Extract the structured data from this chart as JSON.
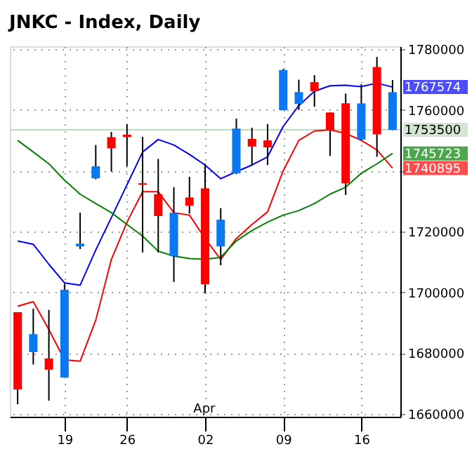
{
  "chart_data": {
    "type": "candlestick",
    "title": "JNKC - Index, Daily",
    "categories": [
      null,
      null,
      null,
      "19",
      null,
      null,
      null,
      "26",
      null,
      null,
      null,
      null,
      "02",
      null,
      null,
      null,
      null,
      "09",
      null,
      null,
      null,
      null,
      "16",
      null,
      null
    ],
    "ohlc": [
      [
        1668000,
        1693400,
        1663100,
        1693400
      ],
      [
        1686200,
        1694600,
        1676200,
        1680300
      ],
      [
        1674500,
        1694200,
        1664300,
        1678200
      ],
      [
        1700800,
        1702800,
        1671900,
        1671900
      ],
      [
        1716000,
        1726200,
        1714200,
        1715100
      ],
      [
        1741500,
        1748500,
        1737200,
        1737500
      ],
      [
        1747400,
        1752800,
        1739700,
        1751100
      ],
      [
        1751100,
        1755400,
        1741500,
        1751900
      ],
      [
        1735400,
        1751200,
        1713100,
        1735900
      ],
      [
        1725100,
        1743900,
        1713100,
        1732300
      ],
      [
        1726200,
        1734600,
        1703400,
        1711900
      ],
      [
        1728500,
        1738000,
        1725900,
        1731200
      ],
      [
        1702600,
        1742300,
        1699700,
        1734200
      ],
      [
        1723900,
        1727700,
        1708900,
        1715100
      ],
      [
        1753900,
        1757200,
        1738900,
        1739200
      ],
      [
        1748000,
        1754200,
        1741900,
        1750500
      ],
      [
        1747700,
        1755400,
        1741900,
        1750000
      ],
      [
        1773200,
        1773500,
        1760000,
        1760000
      ],
      [
        1765900,
        1770000,
        1760000,
        1762000
      ],
      [
        1766200,
        1771500,
        1761100,
        1769200
      ],
      [
        1753400,
        1759200,
        1744900,
        1759200
      ],
      [
        1735900,
        1765400,
        1732000,
        1762200
      ],
      [
        1762200,
        1768500,
        1750000,
        1750300
      ],
      [
        1752000,
        1777500,
        1744600,
        1774200
      ],
      [
        1765900,
        1769900,
        1753400,
        1753500
      ]
    ],
    "colors": [
      "#ff0000",
      "#0a78f0",
      "#ff0000",
      "#0a78f0",
      "#0a78f0",
      "#0a78f0",
      "#ff0000",
      "#ff0000",
      "#ff0000",
      "#ff0000",
      "#0a78f0",
      "#ff0000",
      "#ff0000",
      "#0a78f0",
      "#0a78f0",
      "#ff0000",
      "#ff0000",
      "#0a78f0",
      "#0a78f0",
      "#ff0000",
      "#ff0000",
      "#ff0000",
      "#0a78f0",
      "#ff0000",
      "#0a78f0"
    ],
    "series": [
      {
        "type": "line",
        "color": "#0000ff",
        "values": [
          1716900,
          1715800,
          1709200,
          1703100,
          1702300,
          1713900,
          1724600,
          1735400,
          1746200,
          1750300,
          1748500,
          1745400,
          1741900,
          1737400,
          1739700,
          1741900,
          1744600,
          1754600,
          1761500,
          1766200,
          1768000,
          1768200,
          1767700,
          1768900,
          1767574
        ],
        "value_labels": [
          null,
          null,
          null,
          null,
          null,
          null,
          null,
          null,
          null,
          null,
          null,
          null,
          null,
          null,
          null,
          null,
          null,
          null,
          null,
          null,
          null,
          null,
          null,
          null,
          "1767574"
        ]
      },
      {
        "type": "line",
        "color": "#ff0000",
        "values": [
          1695400,
          1696900,
          1687700,
          1677700,
          1677300,
          1690800,
          1710800,
          1723100,
          1733100,
          1733100,
          1726200,
          1725400,
          1717700,
          1710800,
          1717700,
          1722300,
          1726500,
          1740000,
          1750000,
          1753100,
          1753500,
          1752300,
          1750000,
          1746900,
          1740895
        ],
        "value_labels": [
          null,
          null,
          null,
          null,
          null,
          null,
          null,
          null,
          null,
          null,
          null,
          null,
          null,
          null,
          null,
          null,
          null,
          null,
          null,
          null,
          null,
          null,
          null,
          null,
          "1740895"
        ]
      },
      {
        "type": "line",
        "color": "#008000",
        "values": [
          1750000,
          1746200,
          1742300,
          1736900,
          1732300,
          1729200,
          1726200,
          1722300,
          1718500,
          1713500,
          1711900,
          1711100,
          1710800,
          1711500,
          1716900,
          1720300,
          1723100,
          1725400,
          1726900,
          1729200,
          1732300,
          1734600,
          1739200,
          1742300,
          1745723
        ],
        "value_labels": [
          null,
          null,
          null,
          null,
          null,
          null,
          null,
          null,
          null,
          null,
          null,
          null,
          null,
          null,
          null,
          null,
          null,
          null,
          null,
          null,
          null,
          null,
          null,
          null,
          "1745723"
        ]
      }
    ],
    "ref_lines": [
      {
        "axis": "y",
        "value": 1753500,
        "label": "1753500",
        "color": "#c0dcc0"
      }
    ],
    "annotations": [
      "Apr"
    ],
    "ylim": [
      1659000,
      1781000
    ],
    "yticks": [
      1660000,
      1680000,
      1700000,
      1720000,
      {
        "value": 1740000,
        "label": null
      },
      1760000,
      1780000
    ],
    "grid": true,
    "tick_labels": "xy"
  }
}
